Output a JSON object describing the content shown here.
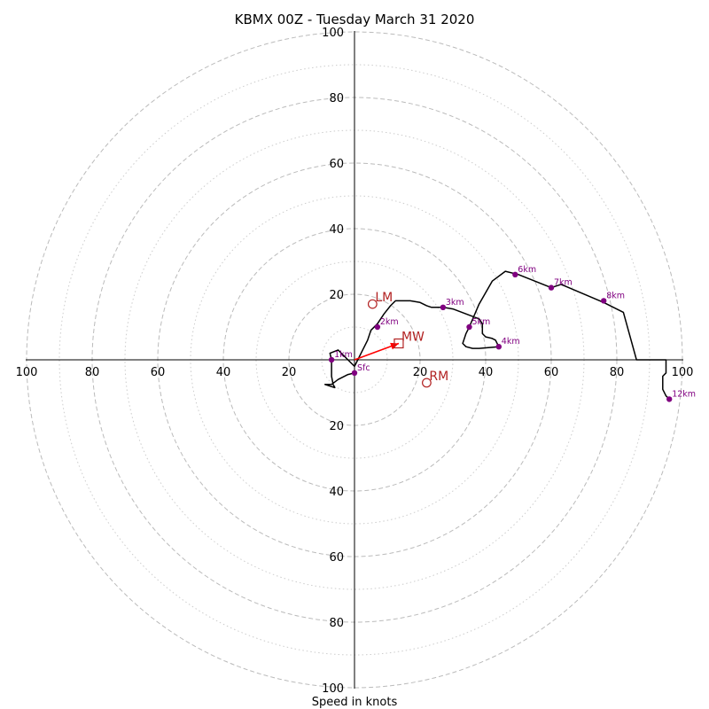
{
  "chart_data": {
    "type": "hodograph",
    "title": "KBMX 00Z - Tuesday March 31 2020",
    "xlabel": "Speed in knots",
    "units": "knots",
    "x_range": [
      -100,
      100
    ],
    "y_range": [
      -100,
      100
    ],
    "tick_labels": [
      "20",
      "40",
      "60",
      "80",
      "100"
    ],
    "x_ticks": [
      -100,
      -80,
      -60,
      -40,
      -20,
      20,
      40,
      60,
      80,
      100
    ],
    "y_ticks": [
      -100,
      -80,
      -60,
      -40,
      -20,
      20,
      40,
      60,
      80,
      100
    ],
    "rings_major": [
      20,
      40,
      60,
      80,
      100
    ],
    "rings_minor": [
      10,
      30,
      50,
      70,
      90
    ],
    "grid": true,
    "colors": {
      "trace": "#000000",
      "height_points": "#800080",
      "storm_motion": "#b22222",
      "mean_wind_arrow": "#ff0000",
      "grid": "#bbbbbb"
    },
    "hodograph_trace": [
      [
        0,
        -4
      ],
      [
        -2,
        -4.5
      ],
      [
        -5,
        -6
      ],
      [
        -7,
        -7.5
      ],
      [
        -9,
        -7.5
      ],
      [
        -6,
        -8.5
      ],
      [
        -6.5,
        -7.5
      ],
      [
        -7,
        -5
      ],
      [
        -7,
        0
      ],
      [
        -7.5,
        2
      ],
      [
        -5,
        3
      ],
      [
        0,
        -2
      ],
      [
        1,
        0
      ],
      [
        2,
        2
      ],
      [
        3,
        4
      ],
      [
        4,
        6
      ],
      [
        5,
        9
      ],
      [
        7,
        11
      ],
      [
        9,
        14
      ],
      [
        11,
        16.5
      ],
      [
        12.5,
        18
      ],
      [
        17,
        18
      ],
      [
        20,
        17.5
      ],
      [
        22,
        16.5
      ],
      [
        23.5,
        16
      ],
      [
        27,
        16
      ],
      [
        30,
        15.5
      ],
      [
        34,
        14
      ],
      [
        38,
        12.5
      ],
      [
        39,
        11
      ],
      [
        39,
        8
      ],
      [
        40,
        7
      ],
      [
        42,
        6.5
      ],
      [
        43,
        6
      ],
      [
        44,
        4
      ],
      [
        38,
        3.5
      ],
      [
        36,
        3.5
      ],
      [
        34,
        4
      ],
      [
        33,
        5
      ],
      [
        34,
        8
      ],
      [
        35,
        10
      ],
      [
        38,
        17
      ],
      [
        42,
        24
      ],
      [
        46,
        27
      ],
      [
        50,
        26
      ],
      [
        60,
        22
      ],
      [
        63,
        23
      ],
      [
        76,
        17.5
      ],
      [
        82,
        14.5
      ],
      [
        86,
        0
      ],
      [
        95,
        0
      ],
      [
        95,
        -4
      ],
      [
        94,
        -5
      ],
      [
        94,
        -9
      ],
      [
        95,
        -11
      ],
      [
        96,
        -12
      ]
    ],
    "height_points": [
      {
        "label": "1km",
        "u": -7,
        "v": 0
      },
      {
        "label": "Sfc",
        "u": 0,
        "v": -4
      },
      {
        "label": "2km",
        "u": 7,
        "v": 10
      },
      {
        "label": "3km",
        "u": 27,
        "v": 16
      },
      {
        "label": "4km",
        "u": 44,
        "v": 4
      },
      {
        "label": "5km",
        "u": 35,
        "v": 10
      },
      {
        "label": "6km",
        "u": 49,
        "v": 26
      },
      {
        "label": "7km",
        "u": 60,
        "v": 22
      },
      {
        "label": "8km",
        "u": 76,
        "v": 18
      },
      {
        "label": "12km",
        "u": 96,
        "v": -12
      }
    ],
    "storm_motion": [
      {
        "label": "LM",
        "u": 5.5,
        "v": 17,
        "marker": "circle"
      },
      {
        "label": "MW",
        "u": 13.5,
        "v": 5,
        "marker": "square"
      },
      {
        "label": "RM",
        "u": 22,
        "v": -7,
        "marker": "circle"
      }
    ],
    "mean_wind_vector": {
      "from": [
        0,
        0
      ],
      "to": [
        13.5,
        5
      ]
    }
  }
}
